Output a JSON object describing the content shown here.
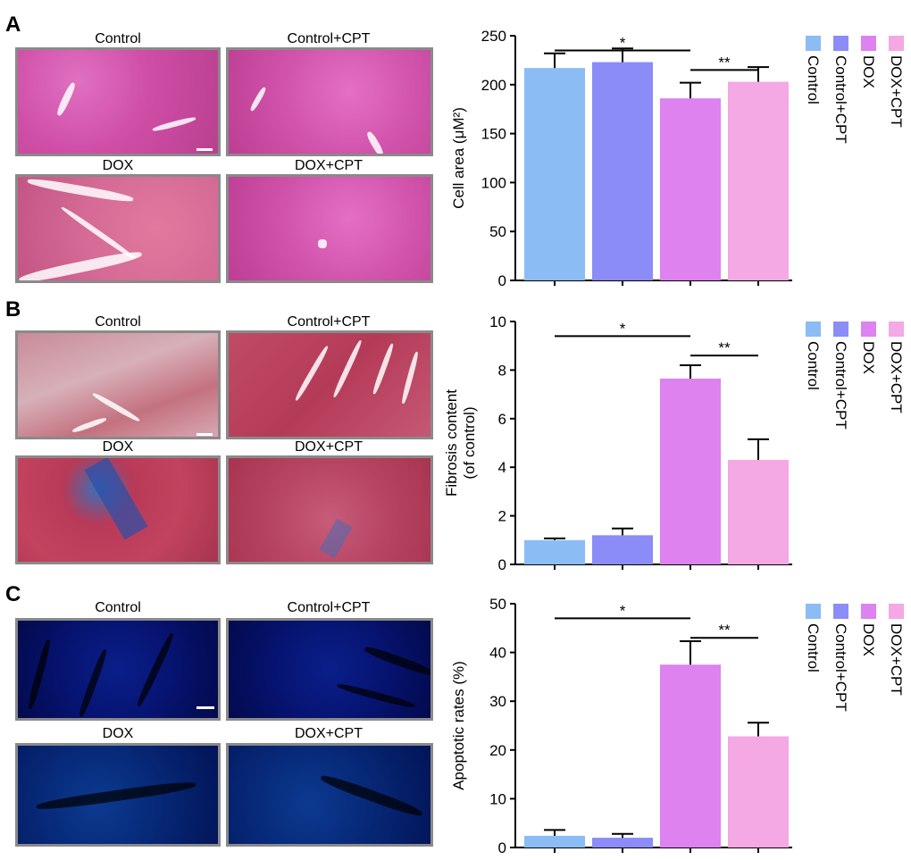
{
  "panels": [
    {
      "letter": "A",
      "images": {
        "tl": "Control",
        "tr": "Control+CPT",
        "bl": "DOX",
        "br": "DOX+CPT"
      },
      "chart_data": {
        "type": "bar",
        "categories": [
          "Control",
          "Control+CPT",
          "DOX",
          "DOX+CPT"
        ],
        "values": [
          217,
          223,
          186,
          203
        ],
        "errors": [
          15,
          14,
          16,
          15
        ],
        "ylabel": "Cell area (μM²)",
        "ylim": [
          0,
          250
        ],
        "yticks": [
          "0",
          "50",
          "100",
          "150",
          "200",
          "250"
        ],
        "significance": [
          {
            "from": 0,
            "to": 2,
            "label": "*"
          },
          {
            "from": 2,
            "to": 3,
            "label": "**"
          }
        ]
      }
    },
    {
      "letter": "B",
      "images": {
        "tl": "Control",
        "tr": "Control+CPT",
        "bl": "DOX",
        "br": "DOX+CPT"
      },
      "chart_data": {
        "type": "bar",
        "categories": [
          "Control",
          "Control+CPT",
          "DOX",
          "DOX+CPT"
        ],
        "values": [
          1.0,
          1.2,
          7.65,
          4.3
        ],
        "errors": [
          0.07,
          0.28,
          0.55,
          0.85
        ],
        "ylabel": "Fibrosis content",
        "ylabel2": "(of control)",
        "ylim": [
          0,
          10
        ],
        "yticks": [
          "0",
          "2",
          "4",
          "6",
          "8",
          "10"
        ],
        "significance": [
          {
            "from": 0,
            "to": 2,
            "label": "*"
          },
          {
            "from": 2,
            "to": 3,
            "label": "**"
          }
        ]
      }
    },
    {
      "letter": "C",
      "images": {
        "tl": "Control",
        "tr": "Control+CPT",
        "bl": "DOX",
        "br": "DOX+CPT"
      },
      "chart_data": {
        "type": "bar",
        "categories": [
          "Control",
          "Control+CPT",
          "DOX",
          "DOX+CPT"
        ],
        "values": [
          2.4,
          2.0,
          37.5,
          22.8
        ],
        "errors": [
          1.2,
          0.8,
          4.8,
          2.8
        ],
        "ylabel": "Apoptotic rates (%)",
        "ylim": [
          0,
          50
        ],
        "yticks": [
          "0",
          "10",
          "20",
          "30",
          "40",
          "50"
        ],
        "significance": [
          {
            "from": 0,
            "to": 2,
            "label": "*"
          },
          {
            "from": 2,
            "to": 3,
            "label": "**"
          }
        ]
      }
    }
  ],
  "legend": [
    "Control",
    "Control+CPT",
    "DOX",
    "DOX+CPT"
  ],
  "colors": [
    "#8cbcf4",
    "#8b8cf7",
    "#dd82ee",
    "#f4a8e4"
  ]
}
